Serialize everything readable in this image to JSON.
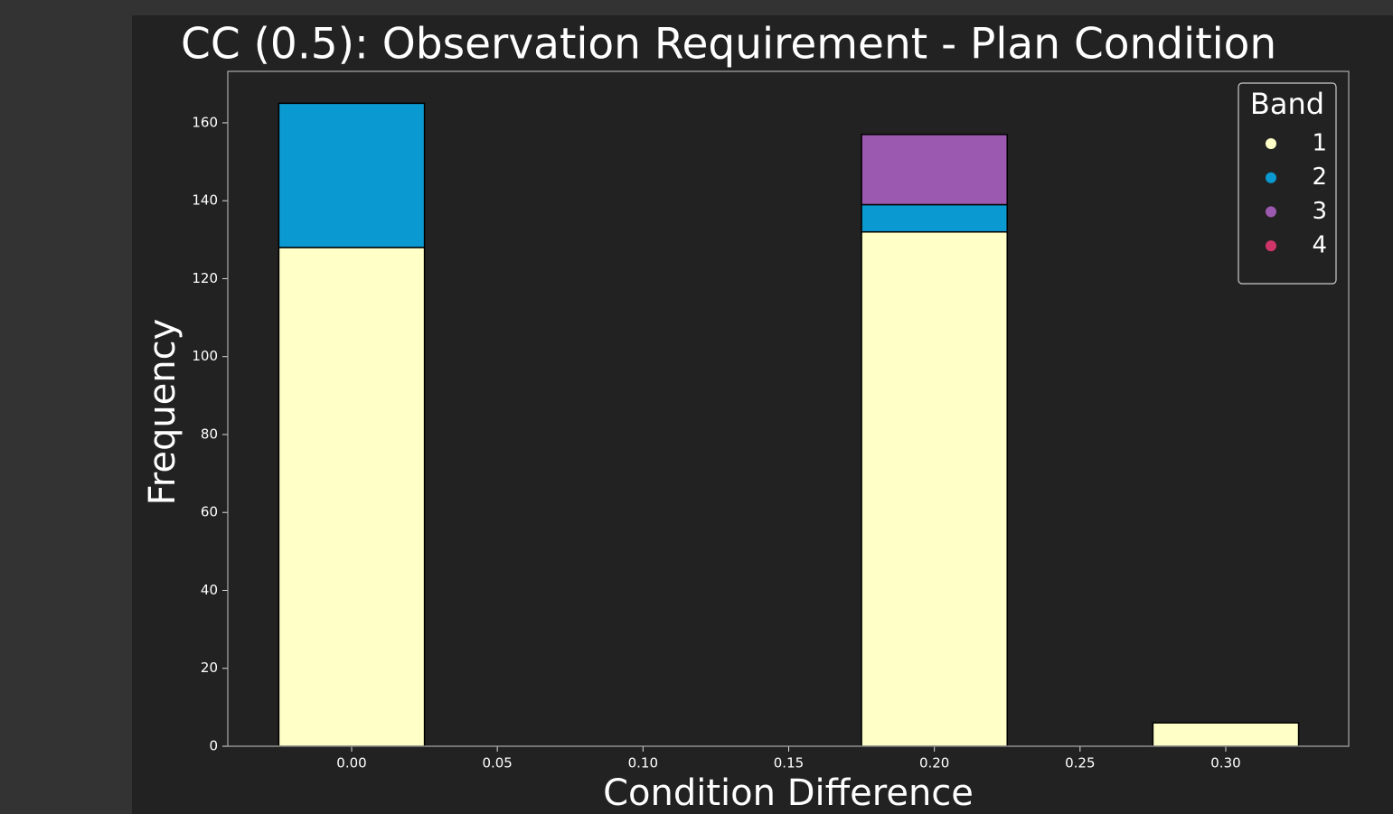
{
  "chart_data": {
    "type": "bar",
    "stacked": true,
    "title": "CC (0.5):  Observation Requirement - Plan Condition",
    "x_label": "Condition Difference",
    "y_label": "Frequency",
    "x": [
      0,
      0.2,
      0.3
    ],
    "bar_width": 0.05,
    "series": [
      {
        "name": "1",
        "color": "#ffffc8",
        "values": [
          128,
          132,
          6
        ]
      },
      {
        "name": "2",
        "color": "#0b99d1",
        "values": [
          37,
          7,
          0
        ]
      },
      {
        "name": "3",
        "color": "#9b59b0",
        "values": [
          0,
          18,
          0
        ]
      },
      {
        "name": "4",
        "color": "#d0356a",
        "values": [
          0,
          0,
          0
        ]
      }
    ],
    "legend_title": "Band",
    "legend": "upper right",
    "xlim": [
      -0.0425,
      0.3422
    ],
    "ylim": [
      0,
      173.2
    ],
    "xticks": [
      {
        "value": 0,
        "label": "0.00"
      },
      {
        "value": 0.05,
        "label": "0.05"
      },
      {
        "value": 0.1,
        "label": "0.10"
      },
      {
        "value": 0.15,
        "label": "0.15"
      },
      {
        "value": 0.2,
        "label": "0.20"
      },
      {
        "value": 0.25,
        "label": "0.25"
      },
      {
        "value": 0.3,
        "label": "0.30"
      }
    ],
    "yticks": [
      0,
      20,
      40,
      60,
      80,
      100,
      120,
      140,
      160
    ]
  }
}
